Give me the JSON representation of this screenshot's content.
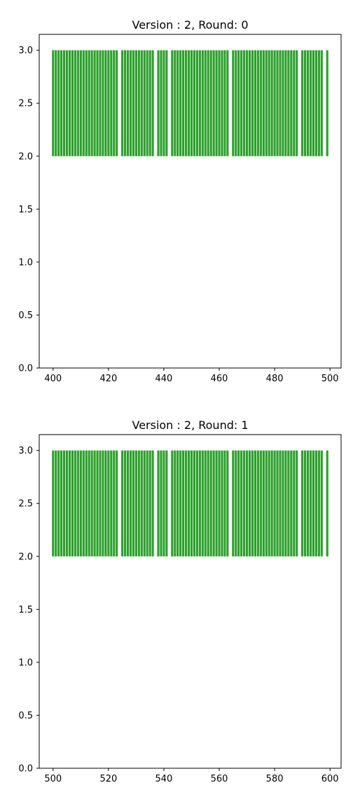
{
  "chart_data": [
    {
      "type": "bar",
      "title": "Version : 2, Round: 0",
      "xlabel": "",
      "ylabel": "",
      "xlim": [
        395,
        504
      ],
      "ylim": [
        0,
        3.15
      ],
      "xticks": [
        "400",
        "420",
        "440",
        "460",
        "480",
        "500"
      ],
      "yticks": [
        "0.0",
        "0.5",
        "1.0",
        "1.5",
        "2.0",
        "2.5",
        "3.0"
      ],
      "bar_bottom": 2.0,
      "bar_top": 3.0,
      "bar_width": 0.8,
      "color": "#2ca02c",
      "grid": false,
      "x": [
        400,
        401,
        402,
        403,
        404,
        405,
        406,
        407,
        408,
        409,
        410,
        411,
        412,
        413,
        414,
        415,
        416,
        417,
        418,
        419,
        420,
        421,
        422,
        423,
        425,
        426,
        427,
        428,
        429,
        430,
        431,
        432,
        433,
        434,
        435,
        436,
        438,
        439,
        440,
        441,
        443,
        444,
        445,
        446,
        447,
        448,
        449,
        450,
        451,
        452,
        453,
        454,
        455,
        456,
        457,
        458,
        459,
        460,
        461,
        462,
        463,
        465,
        466,
        467,
        468,
        469,
        470,
        471,
        472,
        473,
        474,
        475,
        476,
        477,
        478,
        479,
        480,
        481,
        482,
        483,
        484,
        485,
        486,
        487,
        488,
        490,
        491,
        492,
        493,
        494,
        495,
        496,
        497,
        499
      ]
    },
    {
      "type": "bar",
      "title": "Version : 2, Round: 1",
      "xlabel": "",
      "ylabel": "",
      "xlim": [
        495,
        604
      ],
      "ylim": [
        0,
        3.15
      ],
      "xticks": [
        "500",
        "520",
        "540",
        "560",
        "580",
        "600"
      ],
      "yticks": [
        "0.0",
        "0.5",
        "1.0",
        "1.5",
        "2.0",
        "2.5",
        "3.0"
      ],
      "bar_bottom": 2.0,
      "bar_top": 3.0,
      "bar_width": 0.8,
      "color": "#2ca02c",
      "grid": false,
      "x": [
        500,
        501,
        502,
        503,
        504,
        505,
        506,
        507,
        508,
        509,
        510,
        511,
        512,
        513,
        514,
        515,
        516,
        517,
        518,
        519,
        520,
        521,
        522,
        523,
        525,
        526,
        527,
        528,
        529,
        530,
        531,
        532,
        533,
        534,
        535,
        536,
        538,
        539,
        540,
        541,
        543,
        544,
        545,
        546,
        547,
        548,
        549,
        550,
        551,
        552,
        553,
        554,
        555,
        556,
        557,
        558,
        559,
        560,
        561,
        562,
        563,
        565,
        566,
        567,
        568,
        569,
        570,
        571,
        572,
        573,
        574,
        575,
        576,
        577,
        578,
        579,
        580,
        581,
        582,
        583,
        584,
        585,
        586,
        587,
        588,
        590,
        591,
        592,
        593,
        594,
        595,
        596,
        597,
        599
      ]
    }
  ]
}
